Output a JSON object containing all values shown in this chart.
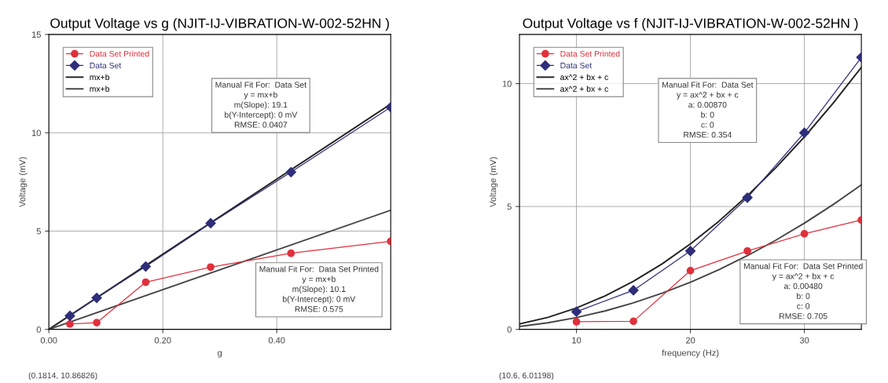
{
  "chart_data": [
    {
      "type": "line",
      "title": "Output Voltage vs g (NJIT-IJ-VIBRATION-W-002-52HN )",
      "xlabel": "g",
      "ylabel": "Voltage (mV)",
      "xlim": [
        0,
        0.6
      ],
      "xticks": [
        {
          "value": 0,
          "label": "0.00"
        },
        {
          "value": 0.2,
          "label": "0.20"
        },
        {
          "value": 0.4,
          "label": "0.40"
        }
      ],
      "ylim": [
        0,
        15
      ],
      "yticks": [
        0,
        5,
        10,
        15
      ],
      "grid": true,
      "legend": "top left",
      "series": [
        {
          "name": "Data Set Printed",
          "color": "#e0303c",
          "marker": "circle",
          "x": [
            0.037,
            0.084,
            0.17,
            0.284,
            0.425,
            0.6
          ],
          "values": [
            0.27,
            0.34,
            2.4,
            3.17,
            3.87,
            4.48
          ]
        },
        {
          "name": "Data Set",
          "color": "#2e2e7a",
          "marker": "diamond",
          "x": [
            0.037,
            0.084,
            0.17,
            0.284,
            0.425,
            0.6
          ],
          "values": [
            0.69,
            1.6,
            3.2,
            5.4,
            8.0,
            11.3
          ]
        },
        {
          "name": "mx+b",
          "color": "#222222",
          "marker": "none",
          "x": [
            0,
            0.6
          ],
          "values": [
            0,
            11.46
          ]
        },
        {
          "name": "mx+b",
          "color": "#444444",
          "marker": "none",
          "x": [
            0,
            0.6
          ],
          "values": [
            0,
            6.06
          ]
        }
      ],
      "annotations": [
        "Manual Fit For:  Data Set\ny = mx+b\nm(Slope): 19.1\nb(Y-Intercept): 0 mV\nRMSE: 0.0407",
        "Manual Fit For:  Data Set Printed\ny = mx+b\nm(Slope): 10.1\nb(Y-Intercept): 0 mV\nRMSE: 0.575",
        "(0.1814, 10.86826)"
      ]
    },
    {
      "type": "line",
      "title": "Output Voltage vs f (NJIT-IJ-VIBRATION-W-002-52HN )",
      "xlabel": "frequency (Hz)",
      "ylabel": "Voltage (mV)",
      "xlim": [
        5,
        35
      ],
      "xticks": [
        10,
        20,
        30
      ],
      "ylim": [
        0,
        12
      ],
      "yticks": [
        0,
        5,
        10
      ],
      "grid": true,
      "legend": "top left",
      "series": [
        {
          "name": "Data Set Printed",
          "color": "#e0303c",
          "marker": "circle",
          "x": [
            10,
            15,
            20,
            25,
            30,
            35
          ],
          "values": [
            0.31,
            0.33,
            2.39,
            3.19,
            3.89,
            4.45
          ]
        },
        {
          "name": "Data Set",
          "color": "#2e2e7a",
          "marker": "diamond",
          "x": [
            10,
            15,
            20,
            25,
            30,
            35
          ],
          "values": [
            0.72,
            1.59,
            3.19,
            5.36,
            8.0,
            11.07
          ]
        },
        {
          "name": "ax^2 + bx + c",
          "color": "#222222",
          "marker": "none",
          "x": [
            5,
            7.5,
            10,
            12.5,
            15,
            17.5,
            20,
            22.5,
            25,
            27.5,
            30,
            32.5,
            35
          ],
          "values": [
            0.22,
            0.49,
            0.87,
            1.36,
            1.96,
            2.66,
            3.48,
            4.4,
            5.44,
            6.58,
            7.83,
            9.19,
            10.66
          ]
        },
        {
          "name": "ax^2 + bx + c",
          "color": "#444444",
          "marker": "none",
          "x": [
            5,
            7.5,
            10,
            12.5,
            15,
            17.5,
            20,
            22.5,
            25,
            27.5,
            30,
            32.5,
            35
          ],
          "values": [
            0.12,
            0.27,
            0.48,
            0.75,
            1.08,
            1.47,
            1.92,
            2.43,
            3.0,
            3.63,
            4.32,
            5.07,
            5.88
          ]
        }
      ],
      "annotations": [
        "Manual Fit For:  Data Set\ny = ax^2 + bx + c\na: 0.00870\nb: 0\nc: 0\nRMSE: 0.354",
        "Manual Fit For:  Data Set Printed\ny = ax^2 + bx + c\na: 0.00480\nb: 0\nc: 0\nRMSE: 0.705",
        "(10.6, 6.01198)"
      ]
    }
  ]
}
